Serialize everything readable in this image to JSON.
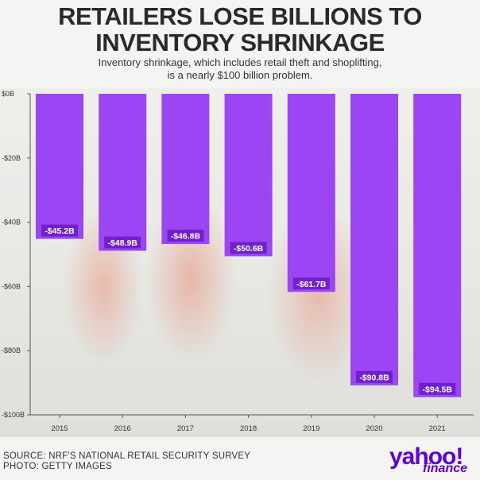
{
  "title_lines": [
    "RETAILERS LOSE BILLIONS TO",
    "INVENTORY SHRINKAGE"
  ],
  "subtitle_lines": [
    "Inventory shrinkage, which includes retail theft and shoplifting,",
    "is a nearly $100 billion problem."
  ],
  "chart_data": {
    "type": "bar",
    "title": "RETAILERS LOSE BILLIONS TO INVENTORY SHRINKAGE",
    "categories": [
      "2015",
      "2016",
      "2017",
      "2018",
      "2019",
      "2020",
      "2021"
    ],
    "values": [
      -45.2,
      -48.9,
      -46.8,
      -50.6,
      -61.7,
      -90.8,
      -94.5
    ],
    "value_labels": [
      "-$45.2B",
      "-$48.9B",
      "-$46.8B",
      "-$50.6B",
      "-$61.7B",
      "-$90.8B",
      "-$94.5B"
    ],
    "yticks": [
      0,
      -20,
      -40,
      -60,
      -80,
      -100
    ],
    "ytick_labels": [
      "$0B",
      "-$20B",
      "-$40B",
      "-$60B",
      "-$80B",
      "-$100B"
    ],
    "ylim": [
      -100,
      0
    ],
    "xlabel": "",
    "ylabel": "",
    "bar_color": "#9b45f5",
    "grid": false
  },
  "footer": {
    "source": "SOURCE: NRF'S NATIONAL RETAIL SECURITY SURVEY",
    "photo": "PHOTO: GETTY IMAGES"
  },
  "logo": {
    "word": "yahoo!",
    "sub": "finance"
  },
  "colors": {
    "brand": "#6001d2",
    "bar": "#9b45f5",
    "text": "#2a2a2a"
  }
}
